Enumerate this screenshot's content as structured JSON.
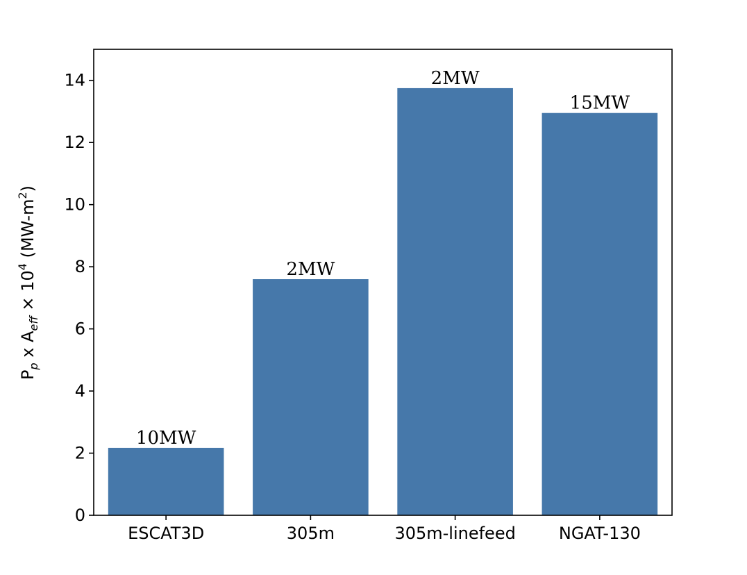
{
  "chart_data": {
    "type": "bar",
    "categories": [
      "ESCAT3D",
      "305m",
      "305m-linefeed",
      "NGAT-130"
    ],
    "values": [
      2.17,
      7.6,
      13.75,
      12.95
    ],
    "data_labels": [
      "10MW",
      "2MW",
      "2MW",
      "15MW"
    ],
    "title": "",
    "xlabel": "",
    "ylabel": {
      "p": "P",
      "p_sub": "p",
      "mid": " x A",
      "a_sub": "eff",
      "times": " × 10",
      "exp": "4",
      "unit": " (MW-m",
      "unit_sup": "2",
      "close": ")"
    },
    "ylim": [
      0,
      15
    ],
    "yticks": [
      0,
      2,
      4,
      6,
      8,
      10,
      12,
      14
    ],
    "bar_color": "#4678aa",
    "grid": false,
    "legend": "none"
  }
}
